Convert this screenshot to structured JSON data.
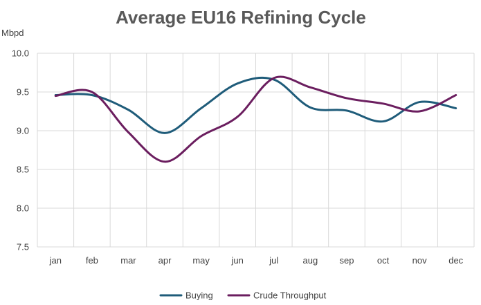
{
  "chart_data": {
    "type": "line",
    "title": "Average EU16 Refining Cycle",
    "ylabel": "Mbpd",
    "xlabel": "",
    "categories": [
      "jan",
      "feb",
      "mar",
      "apr",
      "may",
      "jun",
      "jul",
      "aug",
      "sep",
      "oct",
      "nov",
      "dec"
    ],
    "ylim": [
      7.5,
      10.0
    ],
    "yticks": [
      7.5,
      8.0,
      8.5,
      9.0,
      9.5,
      10.0
    ],
    "ytick_labels": [
      "7.5",
      "8.0",
      "8.5",
      "9.0",
      "9.5",
      "10.0"
    ],
    "grid": true,
    "legend_position": "bottom",
    "series": [
      {
        "name": "Buying",
        "color": "#1f5c7a",
        "values": [
          9.46,
          9.46,
          9.27,
          8.97,
          9.29,
          9.61,
          9.66,
          9.3,
          9.26,
          9.12,
          9.37,
          9.29
        ]
      },
      {
        "name": "Crude Throughput",
        "color": "#6b1e5f",
        "values": [
          9.45,
          9.5,
          8.98,
          8.6,
          8.93,
          9.18,
          9.68,
          9.56,
          9.42,
          9.35,
          9.25,
          9.46
        ]
      }
    ]
  }
}
